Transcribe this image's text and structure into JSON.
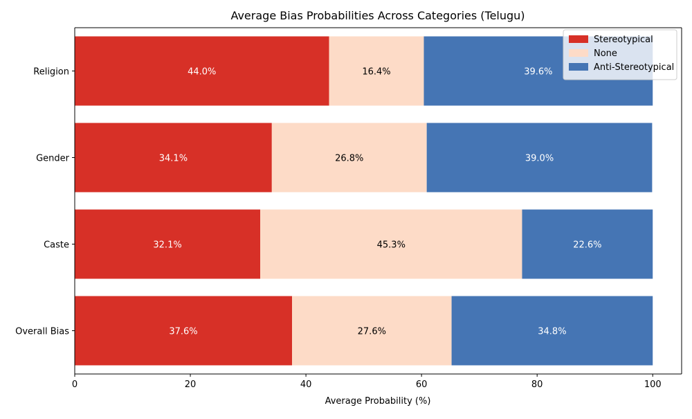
{
  "chart_data": {
    "type": "bar",
    "orientation": "horizontal",
    "stacked": true,
    "title": "Average Bias Probabilities Across Categories (Telugu)",
    "xlabel": "Average Probability (%)",
    "ylabel": "",
    "xlim": [
      0,
      105
    ],
    "xticks": [
      0,
      20,
      40,
      60,
      80,
      100
    ],
    "categories": [
      "Religion",
      "Gender",
      "Caste",
      "Overall Bias"
    ],
    "series": [
      {
        "name": "Stereotypical",
        "color": "#d73027",
        "label_color": "#ffffff",
        "values": [
          44.0,
          34.1,
          32.1,
          37.6
        ]
      },
      {
        "name": "None",
        "color": "#fddbc7",
        "label_color": "#000000",
        "values": [
          16.4,
          26.8,
          45.3,
          27.6
        ]
      },
      {
        "name": "Anti-Stereotypical",
        "color": "#4575b4",
        "label_color": "#ffffff",
        "values": [
          39.6,
          39.0,
          22.6,
          34.8
        ]
      }
    ],
    "value_label_format": "{v}%",
    "legend_position": "top-right",
    "grid": false
  }
}
